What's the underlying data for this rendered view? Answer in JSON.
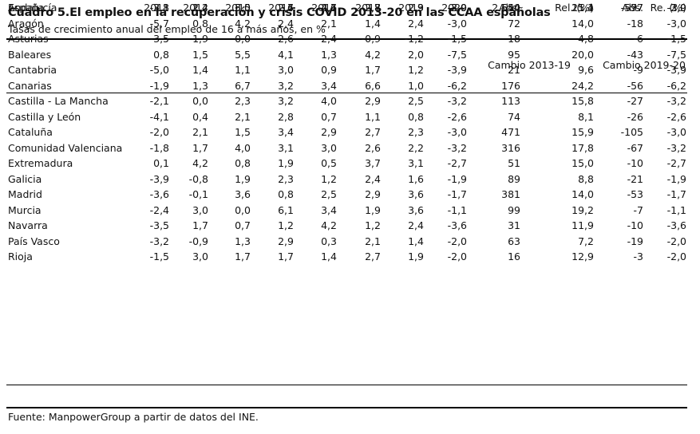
{
  "title": "Cuadro 5.El empleo en la recuperación y crisis COVID 2013-20 en las CCAA españolas",
  "subtitle": "Tasas de crecimiento anual del empleo de 16 a más años, en %",
  "group_headers": {
    "change_2013_19": "Cambio 2013-19",
    "change_2019_20": "Cambio 2019-20"
  },
  "columns": [
    "2013",
    "2014",
    "2015",
    "2016",
    "2017",
    "2018",
    "2019",
    "2020",
    "Abs.",
    "Rel. (%)",
    "Abs.",
    "Re. (%)"
  ],
  "rows": [
    {
      "region": "Andalucía",
      "values": [
        "-3,1",
        "2,4",
        "5,0",
        "2,4",
        "4,1",
        "2,8",
        "2,9",
        "-3,0",
        "554",
        "21,1",
        "-97",
        "-3,0"
      ]
    },
    {
      "region": "Aragón",
      "values": [
        "-5,7",
        "0,8",
        "4,2",
        "2,4",
        "2,1",
        "1,4",
        "2,4",
        "-3,0",
        "72",
        "14,0",
        "-18",
        "-3,0"
      ]
    },
    {
      "region": "Asturias",
      "values": [
        "-3,5",
        "1,9",
        "0,0",
        "2,6",
        "2,4",
        "-0,9",
        "-1,2",
        "-1,5",
        "18",
        "4,8",
        "-6",
        "-1,5"
      ]
    },
    {
      "region": "Baleares",
      "values": [
        "0,8",
        "1,5",
        "5,5",
        "4,1",
        "1,3",
        "4,2",
        "2,0",
        "-7,5",
        "95",
        "20,0",
        "-43",
        "-7,5"
      ]
    },
    {
      "region": "Cantabria",
      "values": [
        "-5,0",
        "1,4",
        "1,1",
        "3,0",
        "0,9",
        "1,7",
        "1,2",
        "-3,9",
        "21",
        "9,6",
        "-9",
        "-3,9"
      ]
    },
    {
      "region": "Canarias",
      "values": [
        "-1,9",
        "1,3",
        "6,7",
        "3,2",
        "3,4",
        "6,6",
        "1,0",
        "-6,2",
        "176",
        "24,2",
        "-56",
        "-6,2"
      ]
    },
    {
      "region": "Castilla - La Mancha",
      "values": [
        "-2,1",
        "0,0",
        "2,3",
        "3,2",
        "4,0",
        "2,9",
        "2,5",
        "-3,2",
        "113",
        "15,8",
        "-27",
        "-3,2"
      ]
    },
    {
      "region": "Castilla y León",
      "values": [
        "-4,1",
        "0,4",
        "2,1",
        "2,8",
        "0,7",
        "1,1",
        "0,8",
        "-2,6",
        "74",
        "8,1",
        "-26",
        "-2,6"
      ]
    },
    {
      "region": "Cataluña",
      "values": [
        "-2,0",
        "2,1",
        "1,5",
        "3,4",
        "2,9",
        "2,7",
        "2,3",
        "-3,0",
        "471",
        "15,9",
        "-105",
        "-3,0"
      ]
    },
    {
      "region": "Comunidad Valenciana",
      "values": [
        "-1,8",
        "1,7",
        "4,0",
        "3,1",
        "3,0",
        "2,6",
        "2,2",
        "-3,2",
        "316",
        "17,8",
        "-67",
        "-3,2"
      ]
    },
    {
      "region": "Extremadura",
      "values": [
        "0,1",
        "4,2",
        "0,8",
        "1,9",
        "0,5",
        "3,7",
        "3,1",
        "-2,7",
        "51",
        "15,0",
        "-10",
        "-2,7"
      ]
    },
    {
      "region": "Galicia",
      "values": [
        "-3,9",
        "-0,8",
        "1,9",
        "2,3",
        "1,2",
        "2,4",
        "1,6",
        "-1,9",
        "89",
        "8,8",
        "-21",
        "-1,9"
      ]
    },
    {
      "region": "Madrid",
      "values": [
        "-3,6",
        "-0,1",
        "3,6",
        "0,8",
        "2,5",
        "2,9",
        "3,6",
        "-1,7",
        "381",
        "14,0",
        "-53",
        "-1,7"
      ]
    },
    {
      "region": "Murcia",
      "values": [
        "-2,4",
        "3,0",
        "0,0",
        "6,1",
        "3,4",
        "1,9",
        "3,6",
        "-1,1",
        "99",
        "19,2",
        "-7",
        "-1,1"
      ]
    },
    {
      "region": "Navarra",
      "values": [
        "-3,5",
        "1,7",
        "0,7",
        "1,2",
        "4,2",
        "1,2",
        "2,4",
        "-3,6",
        "31",
        "11,9",
        "-10",
        "-3,6"
      ]
    },
    {
      "region": "País Vasco",
      "values": [
        "-3,2",
        "-0,9",
        "1,3",
        "2,9",
        "0,3",
        "2,1",
        "1,4",
        "-2,0",
        "63",
        "7,2",
        "-19",
        "-2,0"
      ]
    },
    {
      "region": "Rioja",
      "values": [
        "-1,5",
        "3,0",
        "1,7",
        "1,7",
        "1,4",
        "2,7",
        "1,9",
        "-2,0",
        "16",
        "12,9",
        "-3",
        "-2,0"
      ]
    }
  ],
  "total": {
    "region": "España",
    "values": [
      "-2,8",
      "1,2",
      "3,0",
      "2,7",
      "2,6",
      "2,7",
      "2,3",
      "-2,9",
      "2.640",
      "15,4",
      "-577",
      "-2,9"
    ]
  },
  "footer": "Fuente: ManpowerGroup a partir de datos del INE."
}
